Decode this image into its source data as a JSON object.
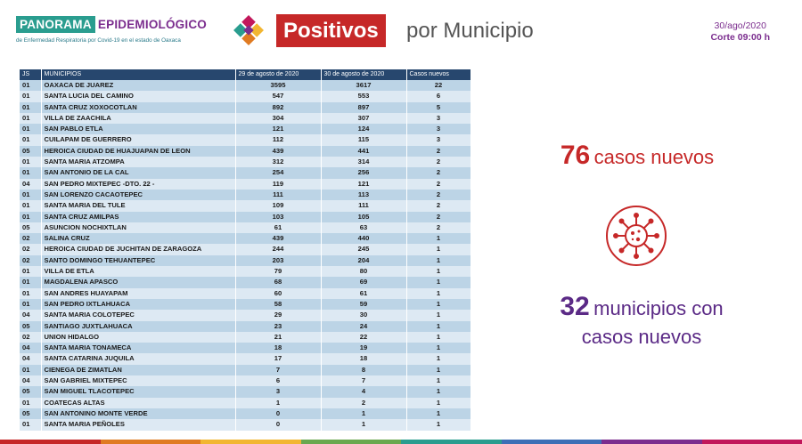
{
  "header": {
    "brand_panorama": "PANORAMA",
    "brand_epi": "EPIDEMIOLÓGICO",
    "brand_sub": "de Enfermedad Respiratoria por Covid-19 en el estado de Oaxaca",
    "title_highlight": "Positivos",
    "title_rest": "por Municipio",
    "date": "30/ago/2020",
    "corte": "Corte 09:00 h"
  },
  "table": {
    "headers": [
      "JS",
      "MUNICIPIOS",
      "29 de agosto de 2020",
      "30 de agosto de 2020",
      "Casos nuevos"
    ],
    "rows": [
      [
        "01",
        "OAXACA DE JUAREZ",
        "3595",
        "3617",
        "22"
      ],
      [
        "01",
        "SANTA LUCIA DEL CAMINO",
        "547",
        "553",
        "6"
      ],
      [
        "01",
        "SANTA CRUZ XOXOCOTLAN",
        "892",
        "897",
        "5"
      ],
      [
        "01",
        "VILLA DE ZAACHILA",
        "304",
        "307",
        "3"
      ],
      [
        "01",
        "SAN PABLO ETLA",
        "121",
        "124",
        "3"
      ],
      [
        "01",
        "CUILAPAM DE GUERRERO",
        "112",
        "115",
        "3"
      ],
      [
        "05",
        "HEROICA CIUDAD DE HUAJUAPAN DE LEON",
        "439",
        "441",
        "2"
      ],
      [
        "01",
        "SANTA MARIA ATZOMPA",
        "312",
        "314",
        "2"
      ],
      [
        "01",
        "SAN ANTONIO DE LA CAL",
        "254",
        "256",
        "2"
      ],
      [
        "04",
        "SAN PEDRO MIXTEPEC -DTO. 22 -",
        "119",
        "121",
        "2"
      ],
      [
        "01",
        "SAN LORENZO CACAOTEPEC",
        "111",
        "113",
        "2"
      ],
      [
        "01",
        "SANTA MARIA DEL TULE",
        "109",
        "111",
        "2"
      ],
      [
        "01",
        "SANTA CRUZ AMILPAS",
        "103",
        "105",
        "2"
      ],
      [
        "05",
        "ASUNCION NOCHIXTLAN",
        "61",
        "63",
        "2"
      ],
      [
        "02",
        "SALINA CRUZ",
        "439",
        "440",
        "1"
      ],
      [
        "02",
        "HEROICA CIUDAD DE JUCHITAN DE ZARAGOZA",
        "244",
        "245",
        "1"
      ],
      [
        "02",
        "SANTO DOMINGO TEHUANTEPEC",
        "203",
        "204",
        "1"
      ],
      [
        "01",
        "VILLA DE ETLA",
        "79",
        "80",
        "1"
      ],
      [
        "01",
        "MAGDALENA APASCO",
        "68",
        "69",
        "1"
      ],
      [
        "01",
        "SAN ANDRES HUAYAPAM",
        "60",
        "61",
        "1"
      ],
      [
        "01",
        "SAN PEDRO IXTLAHUACA",
        "58",
        "59",
        "1"
      ],
      [
        "04",
        "SANTA MARIA COLOTEPEC",
        "29",
        "30",
        "1"
      ],
      [
        "05",
        "SANTIAGO JUXTLAHUACA",
        "23",
        "24",
        "1"
      ],
      [
        "02",
        "UNION HIDALGO",
        "21",
        "22",
        "1"
      ],
      [
        "04",
        "SANTA MARIA TONAMECA",
        "18",
        "19",
        "1"
      ],
      [
        "04",
        "SANTA CATARINA JUQUILA",
        "17",
        "18",
        "1"
      ],
      [
        "01",
        "CIENEGA DE ZIMATLAN",
        "7",
        "8",
        "1"
      ],
      [
        "04",
        "SAN GABRIEL MIXTEPEC",
        "6",
        "7",
        "1"
      ],
      [
        "05",
        "SAN MIGUEL TLACOTEPEC",
        "3",
        "4",
        "1"
      ],
      [
        "01",
        "COATECAS ALTAS",
        "1",
        "2",
        "1"
      ],
      [
        "05",
        "SAN ANTONINO MONTE VERDE",
        "0",
        "1",
        "1"
      ],
      [
        "01",
        "SANTA MARIA PEÑOLES",
        "0",
        "1",
        "1"
      ]
    ]
  },
  "stats": {
    "new_cases_number": "76",
    "new_cases_label": "casos nuevos",
    "municipalities_number": "32",
    "municipalities_label_1": "municipios con",
    "municipalities_label_2": "casos nuevos"
  },
  "icons": {
    "logo": "diamond-logo-icon",
    "virus": "virus-icon"
  },
  "colors": {
    "brand_teal": "#2a9d8f",
    "brand_purple": "#7b2d8e",
    "title_red": "#c62828",
    "table_header": "#27476e",
    "row_odd": "#bcd4e6",
    "row_even": "#dde9f3",
    "stat_red": "#c62828",
    "stat_purple": "#5b2a86",
    "bottom_bar": [
      "#c62828",
      "#e07b22",
      "#f2b632",
      "#6aa84f",
      "#2a9d8f",
      "#3d6fb6",
      "#7b2d8e",
      "#c2185b"
    ]
  }
}
